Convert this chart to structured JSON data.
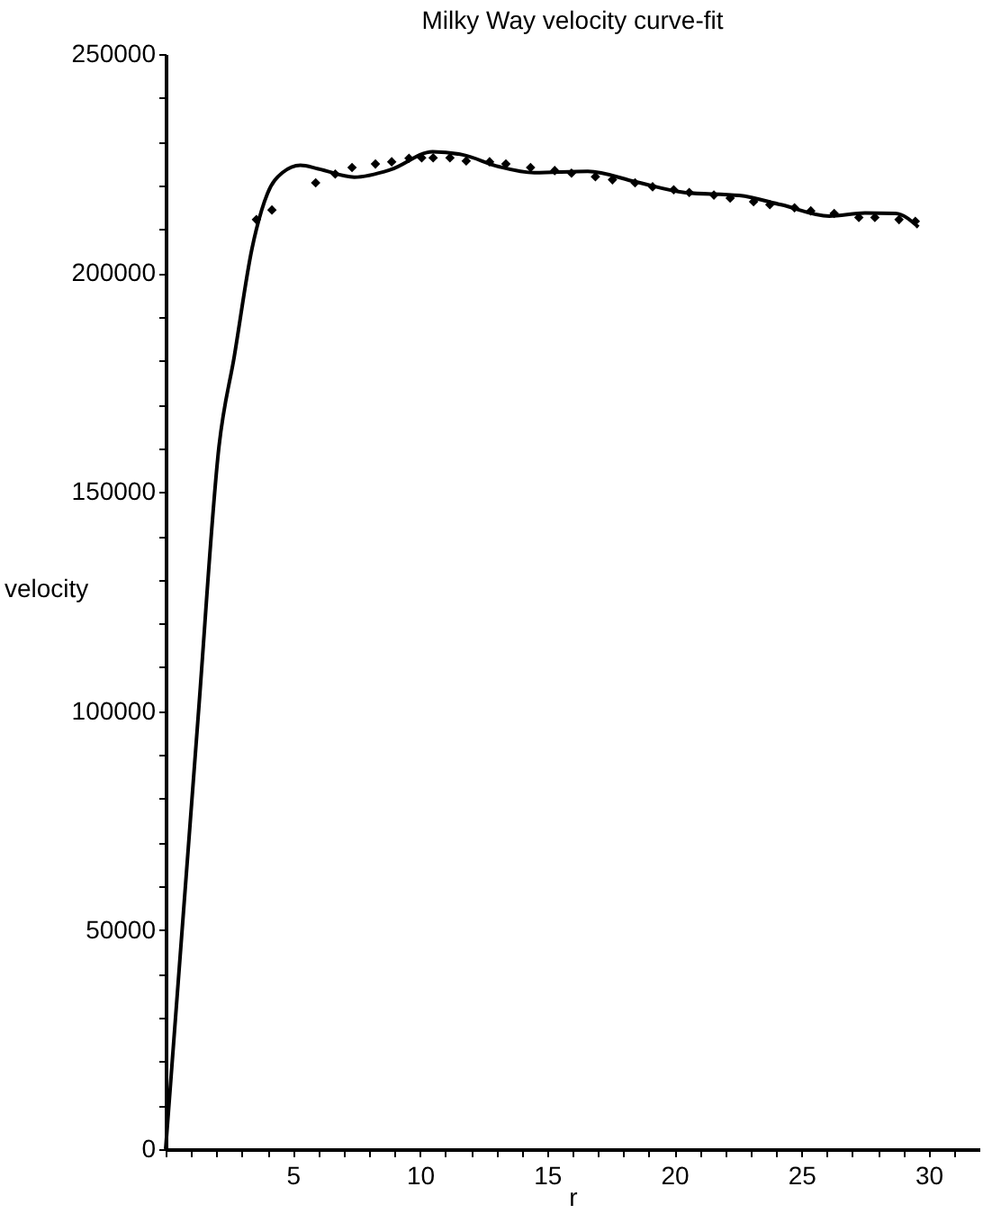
{
  "chart_data": {
    "type": "scatter",
    "title": "Milky Way velocity curve-fit",
    "xlabel": "r",
    "ylabel": "velocity",
    "xlim": [
      0,
      32
    ],
    "ylim": [
      0,
      250000
    ],
    "xticks": [
      {
        "value": 0,
        "label": null
      },
      {
        "value": 1,
        "label": null
      },
      {
        "value": 2,
        "label": null
      },
      {
        "value": 3,
        "label": null
      },
      {
        "value": 4,
        "label": null
      },
      5,
      {
        "value": 6,
        "label": null
      },
      {
        "value": 7,
        "label": null
      },
      {
        "value": 8,
        "label": null
      },
      {
        "value": 9,
        "label": null
      },
      10,
      {
        "value": 11,
        "label": null
      },
      {
        "value": 12,
        "label": null
      },
      {
        "value": 13,
        "label": null
      },
      {
        "value": 14,
        "label": null
      },
      15,
      {
        "value": 16,
        "label": null
      },
      {
        "value": 17,
        "label": null
      },
      {
        "value": 18,
        "label": null
      },
      {
        "value": 19,
        "label": null
      },
      20,
      {
        "value": 21,
        "label": null
      },
      {
        "value": 22,
        "label": null
      },
      {
        "value": 23,
        "label": null
      },
      {
        "value": 24,
        "label": null
      },
      25,
      {
        "value": 26,
        "label": null
      },
      {
        "value": 27,
        "label": null
      },
      {
        "value": 28,
        "label": null
      },
      {
        "value": 29,
        "label": null
      },
      30,
      {
        "value": 31,
        "label": null
      }
    ],
    "yticks": [
      0,
      {
        "value": 10000,
        "label": null
      },
      {
        "value": 20000,
        "label": null
      },
      {
        "value": 30000,
        "label": null
      },
      {
        "value": 40000,
        "label": null
      },
      50000,
      {
        "value": 60000,
        "label": null
      },
      {
        "value": 70000,
        "label": null
      },
      {
        "value": 80000,
        "label": null
      },
      {
        "value": 90000,
        "label": null
      },
      100000,
      {
        "value": 110000,
        "label": null
      },
      {
        "value": 120000,
        "label": null
      },
      {
        "value": 130000,
        "label": null
      },
      {
        "value": 140000,
        "label": null
      },
      150000,
      {
        "value": 160000,
        "label": null
      },
      {
        "value": 170000,
        "label": null
      },
      {
        "value": 180000,
        "label": null
      },
      {
        "value": 190000,
        "label": null
      },
      200000,
      {
        "value": 210000,
        "label": null
      },
      {
        "value": 220000,
        "label": null
      },
      {
        "value": 230000,
        "label": null
      },
      {
        "value": 240000,
        "label": null
      },
      250000
    ],
    "grid": false,
    "series": [
      {
        "color": "#000000",
        "marker": "diamond",
        "x": [
          3.57,
          4.18,
          5.9,
          6.67,
          7.33,
          8.25,
          8.89,
          9.57,
          10.07,
          10.52,
          11.18,
          11.82,
          12.74,
          13.38,
          14.35,
          15.3,
          15.96,
          16.9,
          17.57,
          18.46,
          19.15,
          19.98,
          20.59,
          21.56,
          22.2,
          23.12,
          23.76,
          24.73,
          25.37,
          26.29,
          27.26,
          27.89,
          28.84,
          29.48
        ],
        "values": [
          212200,
          214400,
          220600,
          222600,
          224100,
          224900,
          225400,
          226200,
          226300,
          226300,
          226300,
          225600,
          225400,
          224900,
          224100,
          223400,
          222800,
          222000,
          221300,
          220600,
          219700,
          219000,
          218400,
          217800,
          217100,
          216300,
          215600,
          214900,
          214200,
          213600,
          212700,
          212700,
          212200,
          211800
        ]
      },
      {
        "type": "line",
        "color": "#000000",
        "marker": "none",
        "line_style": "solid",
        "x": [
          0,
          1.28,
          2.1,
          2.7,
          3.4,
          4.0,
          4.59,
          5.3,
          6.0,
          7.42,
          8.84,
          10.5,
          11.68,
          13.1,
          14.5,
          16.6,
          18.5,
          20.4,
          22.56,
          24.2,
          26.1,
          27.5,
          28.7,
          29.6
        ],
        "values": [
          0,
          98800,
          160500,
          181000,
          205700,
          218100,
          222900,
          224600,
          223800,
          221900,
          223600,
          227700,
          227000,
          224300,
          222900,
          223200,
          220800,
          218400,
          217700,
          215600,
          213000,
          213700,
          213600,
          210500
        ]
      }
    ]
  }
}
